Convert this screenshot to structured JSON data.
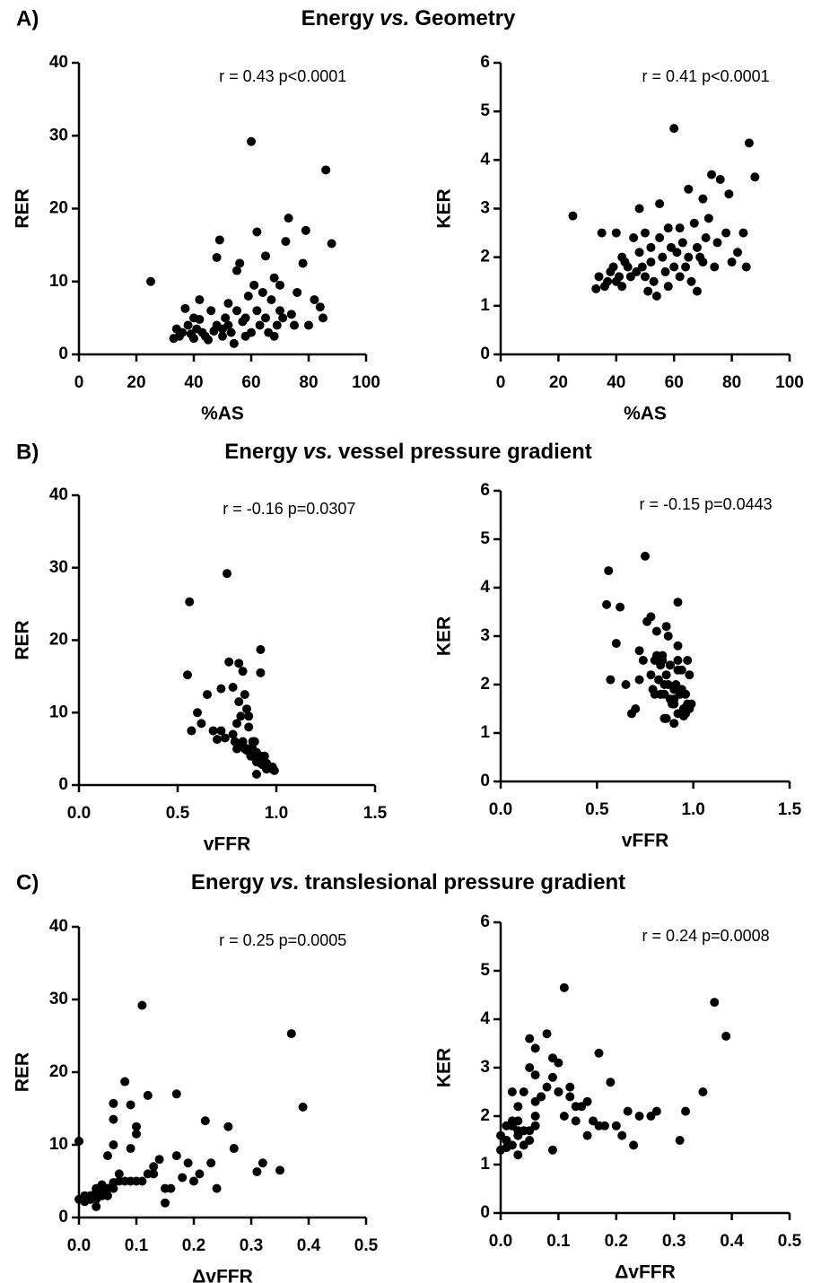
{
  "panels": [
    {
      "label": "A)",
      "title": {
        "pre": "Energy",
        "em": "vs.",
        "post": "Geometry"
      }
    },
    {
      "label": "B)",
      "title": {
        "pre": "Energy",
        "em": "vs.",
        "post": "vessel pressure gradient"
      }
    },
    {
      "label": "C)",
      "title": {
        "pre": "Energy",
        "em": "vs.",
        "post": "translesional pressure gradient"
      }
    }
  ],
  "chart_data": [
    {
      "type": "scatter",
      "xlabel": "%AS",
      "ylabel": "RER",
      "annotation": "r = 0.43 p<0.0001",
      "color": "#000000",
      "xlim": [
        0,
        100
      ],
      "xticks": [
        0,
        20,
        40,
        60,
        80,
        100
      ],
      "ylim": [
        0,
        40
      ],
      "yticks": [
        0,
        10,
        20,
        30,
        40
      ],
      "x": [
        25,
        33,
        34,
        35,
        36,
        37,
        38,
        39,
        40,
        40,
        41,
        42,
        42,
        43,
        44,
        45,
        46,
        47,
        48,
        48,
        49,
        50,
        50,
        51,
        52,
        52,
        53,
        54,
        55,
        55,
        56,
        57,
        58,
        58,
        59,
        60,
        60,
        61,
        62,
        62,
        63,
        64,
        65,
        65,
        66,
        67,
        68,
        68,
        69,
        70,
        70,
        71,
        72,
        73,
        74,
        75,
        76,
        78,
        79,
        80,
        82,
        84,
        85,
        86,
        88
      ],
      "values": [
        10,
        2.2,
        3.5,
        2.5,
        3,
        6.3,
        4,
        2.8,
        5,
        2.2,
        3.5,
        4.8,
        7.5,
        3,
        2.5,
        2,
        6,
        3.2,
        4,
        13.3,
        15.7,
        3.5,
        2.5,
        5,
        7,
        4,
        3,
        1.5,
        11.5,
        6,
        12.5,
        4.5,
        5,
        2.5,
        8,
        29.2,
        3,
        9.5,
        16.8,
        6,
        4,
        8.5,
        13.5,
        5,
        3,
        7.5,
        10.5,
        2.5,
        4,
        9.5,
        6,
        5,
        15.5,
        18.7,
        5.5,
        4,
        8.5,
        12.5,
        17,
        4,
        7.5,
        6.5,
        5,
        25.3,
        15.2
      ]
    },
    {
      "type": "scatter",
      "xlabel": "%AS",
      "ylabel": "KER",
      "annotation": "r = 0.41 p<0.0001",
      "color": "#000000",
      "xlim": [
        0,
        100
      ],
      "xticks": [
        0,
        20,
        40,
        60,
        80,
        100
      ],
      "ylim": [
        0,
        6
      ],
      "yticks": [
        0,
        1,
        2,
        3,
        4,
        5,
        6
      ],
      "x": [
        25,
        33,
        34,
        35,
        36,
        37,
        38,
        39,
        40,
        40,
        41,
        42,
        42,
        43,
        44,
        45,
        46,
        47,
        48,
        48,
        49,
        50,
        50,
        51,
        52,
        52,
        53,
        54,
        55,
        55,
        56,
        57,
        58,
        58,
        59,
        60,
        60,
        61,
        62,
        62,
        63,
        64,
        65,
        65,
        66,
        67,
        68,
        68,
        69,
        70,
        70,
        71,
        72,
        73,
        74,
        75,
        76,
        78,
        79,
        80,
        82,
        84,
        85,
        86,
        88
      ],
      "values": [
        2.85,
        1.35,
        1.6,
        2.5,
        1.4,
        1.5,
        1.7,
        1.8,
        2.5,
        1.5,
        1.6,
        2.0,
        1.4,
        1.9,
        1.8,
        1.6,
        2.4,
        1.7,
        3.0,
        2.1,
        1.8,
        2.5,
        1.6,
        1.3,
        2.2,
        1.9,
        1.5,
        1.2,
        3.1,
        2.4,
        2.0,
        1.7,
        2.6,
        1.4,
        2.2,
        4.65,
        1.8,
        2.1,
        2.6,
        1.6,
        2.3,
        1.8,
        3.4,
        2.0,
        1.5,
        2.7,
        1.3,
        2.2,
        2.0,
        3.2,
        1.9,
        2.4,
        2.8,
        3.7,
        1.8,
        2.3,
        3.6,
        2.5,
        3.3,
        1.9,
        2.1,
        2.5,
        1.8,
        4.35,
        3.65
      ]
    },
    {
      "type": "scatter",
      "xlabel": "vFFR",
      "ylabel": "RER",
      "annotation": "r = -0.16 p=0.0307",
      "color": "#000000",
      "xlim": [
        0,
        1.5
      ],
      "xticks": [
        {
          "value": 0,
          "label": "0.0"
        },
        0.5,
        {
          "value": 1,
          "label": "1.0"
        },
        1.5
      ],
      "ylim": [
        0,
        40
      ],
      "yticks": [
        0,
        10,
        20,
        30,
        40
      ],
      "x": [
        0.6,
        0.95,
        0.9,
        0.97,
        0.92,
        0.7,
        0.88,
        0.93,
        0.8,
        0.98,
        0.9,
        0.85,
        0.68,
        0.94,
        0.96,
        0.99,
        0.83,
        0.9,
        0.87,
        0.72,
        0.83,
        0.92,
        0.97,
        0.86,
        0.78,
        0.91,
        0.95,
        0.9,
        0.81,
        0.88,
        0.65,
        0.9,
        0.84,
        0.96,
        0.86,
        0.75,
        0.93,
        0.82,
        0.81,
        0.89,
        0.92,
        0.8,
        0.78,
        0.87,
        0.95,
        0.72,
        0.85,
        0.98,
        0.91,
        0.86,
        0.79,
        0.88,
        0.92,
        0.92,
        0.83,
        0.94,
        0.62,
        0.84,
        0.76,
        0.9,
        0.57,
        0.74,
        0.85,
        0.56,
        0.55
      ],
      "values": [
        10,
        2.2,
        3.5,
        2.5,
        3,
        6.3,
        4,
        2.8,
        5,
        2.2,
        3.5,
        4.8,
        7.5,
        3,
        2.5,
        2,
        6,
        3.2,
        4,
        13.3,
        15.7,
        3.5,
        2.5,
        5,
        7,
        4,
        3,
        1.5,
        11.5,
        6,
        12.5,
        4.5,
        5,
        2.5,
        8,
        29.2,
        3,
        9.5,
        16.8,
        6,
        4,
        8.5,
        13.5,
        5,
        3,
        7.5,
        10.5,
        2.5,
        4,
        9.5,
        6,
        5,
        15.5,
        18.7,
        5.5,
        4,
        8.5,
        12.5,
        17,
        4,
        7.5,
        6.5,
        5,
        25.3,
        15.2
      ]
    },
    {
      "type": "scatter",
      "xlabel": "vFFR",
      "ylabel": "KER",
      "annotation": "r = -0.15 p=0.0443",
      "color": "#000000",
      "xlim": [
        0,
        1.5
      ],
      "xticks": [
        {
          "value": 0,
          "label": "0.0"
        },
        0.5,
        {
          "value": 1,
          "label": "1.0"
        },
        1.5
      ],
      "ylim": [
        0,
        6
      ],
      "yticks": [
        0,
        1,
        2,
        3,
        4,
        5,
        6
      ],
      "x": [
        0.6,
        0.95,
        0.9,
        0.97,
        0.92,
        0.7,
        0.88,
        0.93,
        0.8,
        0.98,
        0.9,
        0.85,
        0.68,
        0.94,
        0.96,
        0.99,
        0.83,
        0.9,
        0.87,
        0.72,
        0.83,
        0.92,
        0.97,
        0.86,
        0.78,
        0.91,
        0.95,
        0.9,
        0.81,
        0.88,
        0.65,
        0.9,
        0.84,
        0.96,
        0.86,
        0.75,
        0.93,
        0.82,
        0.81,
        0.89,
        0.92,
        0.8,
        0.78,
        0.87,
        0.95,
        0.72,
        0.85,
        0.98,
        0.91,
        0.86,
        0.79,
        0.88,
        0.92,
        0.92,
        0.83,
        0.94,
        0.62,
        0.84,
        0.76,
        0.9,
        0.57,
        0.74,
        0.85,
        0.56,
        0.55
      ],
      "values": [
        2.85,
        1.35,
        1.6,
        2.5,
        1.4,
        1.5,
        1.7,
        1.8,
        2.5,
        1.5,
        1.6,
        2.0,
        1.4,
        1.9,
        1.8,
        1.6,
        2.4,
        1.7,
        3.0,
        2.1,
        1.8,
        2.5,
        1.6,
        1.3,
        2.2,
        1.9,
        1.5,
        1.2,
        3.1,
        2.4,
        2.0,
        1.7,
        2.6,
        1.4,
        2.2,
        4.65,
        1.8,
        2.1,
        2.6,
        1.6,
        2.3,
        1.8,
        3.4,
        2.0,
        1.5,
        2.7,
        1.3,
        2.2,
        2.0,
        3.2,
        1.9,
        2.4,
        2.8,
        3.7,
        1.8,
        2.3,
        3.6,
        2.5,
        3.3,
        1.9,
        2.1,
        2.5,
        1.8,
        4.35,
        3.65
      ]
    },
    {
      "type": "scatter",
      "xlabel": "ΔvFFR",
      "ylabel": "RER",
      "annotation": "r = 0.25 p=0.0005",
      "color": "#000000",
      "xlim": [
        0,
        0.5
      ],
      "xticks": [
        {
          "value": 0,
          "label": "0.0"
        },
        0.1,
        0.2,
        0.3,
        0.4,
        0.5
      ],
      "ylim": [
        0,
        40
      ],
      "yticks": [
        0,
        10,
        20,
        30,
        40
      ],
      "x": [
        0.06,
        0.01,
        0.03,
        0.02,
        0.04,
        0.31,
        0.05,
        0.02,
        0.1,
        0.01,
        0.03,
        0.06,
        0.23,
        0.02,
        0.01,
        0.15,
        0.07,
        0.03,
        0.05,
        0.22,
        0.06,
        0.04,
        0,
        0.09,
        0.13,
        0.03,
        0.05,
        0.03,
        0.1,
        0.12,
        0.26,
        0.04,
        0.08,
        0.02,
        0.14,
        0.11,
        0.02,
        0.27,
        0.12,
        0.21,
        0.06,
        0.17,
        0.06,
        0.11,
        0.01,
        0.19,
        0,
        0.03,
        0.24,
        0.09,
        0.13,
        0.07,
        0.09,
        0.08,
        0.18,
        0.15,
        0.05,
        0.1,
        0.17,
        0.16,
        0.32,
        0.35,
        0.2,
        0.37,
        0.39
      ],
      "values": [
        10,
        2.2,
        3.5,
        2.5,
        3,
        6.3,
        4,
        2.8,
        5,
        2.2,
        3.5,
        4.8,
        7.5,
        3,
        2.5,
        2,
        6,
        3.2,
        4,
        13.3,
        15.7,
        3.5,
        2.5,
        5,
        7,
        4,
        3,
        1.5,
        11.5,
        6,
        12.5,
        4.5,
        5,
        2.5,
        8,
        29.2,
        3,
        9.5,
        16.8,
        6,
        4,
        8.5,
        13.5,
        5,
        3,
        7.5,
        10.5,
        2.5,
        4,
        9.5,
        6,
        5,
        15.5,
        18.7,
        5.5,
        4,
        8.5,
        12.5,
        17,
        4,
        7.5,
        6.5,
        5,
        25.3,
        15.2
      ]
    },
    {
      "type": "scatter",
      "xlabel": "ΔvFFR",
      "ylabel": "KER",
      "annotation": "r = 0.24 p=0.0008",
      "color": "#000000",
      "xlim": [
        0,
        0.5
      ],
      "xticks": [
        {
          "value": 0,
          "label": "0.0"
        },
        0.1,
        0.2,
        0.3,
        0.4,
        0.5
      ],
      "ylim": [
        0,
        6
      ],
      "yticks": [
        0,
        1,
        2,
        3,
        4,
        5,
        6
      ],
      "x": [
        0.06,
        0.01,
        0.03,
        0.02,
        0.04,
        0.31,
        0.05,
        0.02,
        0.1,
        0.01,
        0.03,
        0.06,
        0.23,
        0.02,
        0.01,
        0.15,
        0.07,
        0.03,
        0.05,
        0.22,
        0.06,
        0.04,
        0,
        0.09,
        0.13,
        0.03,
        0.05,
        0.03,
        0.1,
        0.12,
        0.26,
        0.04,
        0.08,
        0.02,
        0.14,
        0.11,
        0.02,
        0.27,
        0.12,
        0.21,
        0.06,
        0.17,
        0.06,
        0.11,
        0.01,
        0.19,
        0,
        0.03,
        0.24,
        0.09,
        0.13,
        0.07,
        0.09,
        0.08,
        0.18,
        0.15,
        0.05,
        0.1,
        0.17,
        0.16,
        0.32,
        0.35,
        0.2,
        0.37,
        0.39
      ],
      "values": [
        2.85,
        1.35,
        1.6,
        2.5,
        1.4,
        1.5,
        1.7,
        1.8,
        2.5,
        1.5,
        1.6,
        2.0,
        1.4,
        1.9,
        1.8,
        1.6,
        2.4,
        1.7,
        3.0,
        2.1,
        1.8,
        2.5,
        1.6,
        1.3,
        2.2,
        1.9,
        1.5,
        1.2,
        3.1,
        2.4,
        2.0,
        1.7,
        2.6,
        1.4,
        2.2,
        4.65,
        1.8,
        2.1,
        2.6,
        1.6,
        2.3,
        1.8,
        3.4,
        2.0,
        1.5,
        2.7,
        1.3,
        2.2,
        2.0,
        3.2,
        1.9,
        2.4,
        2.8,
        3.7,
        1.8,
        2.3,
        3.6,
        2.5,
        3.3,
        1.9,
        2.1,
        2.5,
        1.8,
        4.35,
        3.65
      ]
    }
  ]
}
